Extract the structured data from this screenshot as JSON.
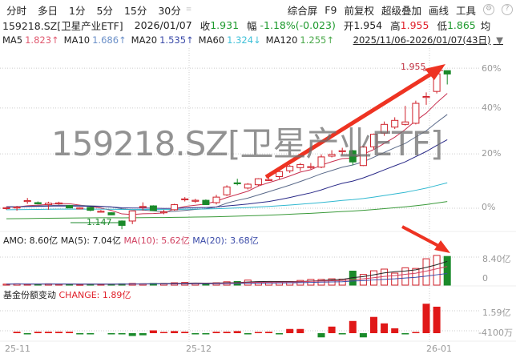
{
  "toolbar": {
    "tabs": [
      "分时",
      "多日",
      "1分",
      "5分",
      "15分",
      "30分"
    ],
    "right": [
      "综合屏",
      "F9",
      "前复权",
      "超级叠加",
      "画线",
      "工具"
    ]
  },
  "quote": {
    "name": "159218.SZ[卫星产业ETF]",
    "date": "2026/01/07",
    "close_label": "收",
    "close": "1.931",
    "chg_label": "幅",
    "chg": "-1.18%(-0.023)",
    "open_label": "开",
    "open": "1.954",
    "high_label": "高",
    "high": "1.955",
    "low_label": "低",
    "low": "1.865",
    "avg_label": "均"
  },
  "ma": [
    {
      "label": "MA5",
      "value": "1.823↑",
      "color": "#e05a70"
    },
    {
      "label": "MA10",
      "value": "1.686↑",
      "color": "#6a8fc8"
    },
    {
      "label": "MA20",
      "value": "1.535↑",
      "color": "#3a4aa8"
    },
    {
      "label": "MA60",
      "value": "1.324↓",
      "color": "#3fc0d8"
    },
    {
      "label": "MA120",
      "value": "1.255↑",
      "color": "#4aa84a"
    }
  ],
  "range": "2025/11/06-2026/01/07(43日)",
  "watermark": "159218.SZ[卫星产业ETF]",
  "colors": {
    "up": "#d0202a",
    "down": "#1a8a2a",
    "arrow": "#ee3322"
  },
  "chart_data": {
    "type": "candlestick",
    "scale": "log",
    "y_axis_ticks": [
      "60%",
      "40%",
      "20%",
      "0%"
    ],
    "x_ticks": [
      "25-11",
      "25-12",
      "26-01"
    ],
    "max_label": "1.955",
    "min_label": "1.147",
    "ohlc_pct": [
      [
        0,
        0.5,
        -0.5,
        0.2
      ],
      [
        0.3,
        0.8,
        -0.8,
        0.4
      ],
      [
        2.5,
        3.5,
        1.5,
        2.6
      ],
      [
        1.9,
        2.3,
        1.3,
        1.5
      ],
      [
        1.2,
        2.2,
        -0.5,
        1.7
      ],
      [
        1.6,
        2.2,
        1.2,
        1.8
      ],
      [
        0.9,
        1.1,
        0,
        0.1
      ],
      [
        0,
        0.3,
        -0.3,
        0.1
      ],
      [
        0.3,
        0.5,
        -1,
        -0.7
      ],
      [
        -1,
        -0.6,
        -1.4,
        -1
      ],
      [
        -1.5,
        -1.3,
        -2.3,
        -2.2
      ],
      [
        -4.2,
        -4,
        -6.8,
        -5.6
      ],
      [
        -4.2,
        -0.8,
        -5.2,
        -0.9
      ],
      [
        0.6,
        2,
        -0.8,
        0.6
      ],
      [
        0.8,
        1,
        -0.9,
        -0.8
      ],
      [
        -1.2,
        -0.5,
        -2,
        -1.2
      ],
      [
        -0.5,
        1.5,
        -0.8,
        1.2
      ],
      [
        3.1,
        3.8,
        2.3,
        3.2
      ],
      [
        2.6,
        3.2,
        1.8,
        2.7
      ],
      [
        2.7,
        3,
        1.1,
        1.2
      ],
      [
        1.9,
        4.6,
        1.3,
        3.8
      ],
      [
        4.6,
        8,
        4.2,
        7.4
      ],
      [
        8.9,
        10.4,
        8,
        8.6
      ],
      [
        7,
        8.8,
        6.5,
        8.4
      ],
      [
        8.2,
        10.6,
        7.7,
        10.4
      ],
      [
        10.1,
        11.3,
        9.6,
        10.1
      ],
      [
        11.2,
        13.6,
        10.3,
        13.1
      ],
      [
        13.4,
        15.6,
        12.6,
        15.1
      ],
      [
        14.6,
        16.4,
        13.3,
        15.8
      ],
      [
        15,
        16.4,
        14,
        15
      ],
      [
        14.8,
        19.8,
        14.4,
        18.8
      ],
      [
        19.1,
        21.5,
        18.6,
        19.8
      ],
      [
        21,
        22.5,
        19.5,
        21.3
      ],
      [
        21.3,
        21.6,
        15.5,
        16.8
      ],
      [
        15.4,
        23.3,
        15.2,
        22.8
      ],
      [
        22.9,
        28.5,
        22,
        28.2
      ],
      [
        28.7,
        33.8,
        27.5,
        32.5
      ],
      [
        31.3,
        35.7,
        30.5,
        34.3
      ],
      [
        32.5,
        41,
        32,
        33.6
      ],
      [
        33,
        43.5,
        32.5,
        42.2
      ],
      [
        45.5,
        47.5,
        41.5,
        45.5
      ],
      [
        48,
        58.8,
        47,
        57
      ],
      [
        58.7,
        58.8,
        51.5,
        56.9
      ]
    ],
    "amo": {
      "legend": [
        {
          "text": "AMO: 8.60亿",
          "color": "#222"
        },
        {
          "text": "MA(5): 7.04亿",
          "color": "#222"
        },
        {
          "text": "MA(10): 5.62亿",
          "color": "#d04060"
        },
        {
          "text": "MA(20): 3.68亿",
          "color": "#3a4aa8"
        }
      ],
      "ticks": [
        "8.40亿",
        "0"
      ],
      "values": [
        0.3,
        0.4,
        0.3,
        0.3,
        0.4,
        0.3,
        0.3,
        0.2,
        0.3,
        0.3,
        0.3,
        0.4,
        0.5,
        0.4,
        0.5,
        0.5,
        0.7,
        0.8,
        0.6,
        0.4,
        0.7,
        1.0,
        1.1,
        1.5,
        1.0,
        0.9,
        0.9,
        1.1,
        1.4,
        1.7,
        1.7,
        1.9,
        1.8,
        4.2,
        3.2,
        4.3,
        4.8,
        3.6,
        5.2,
        5.0,
        7.9,
        8.9,
        8.6
      ]
    },
    "change": {
      "legend_label": "基金份额变动",
      "legend_value": "CHANGE: 1.89亿",
      "ticks": [
        "1.59亿",
        "-4100万"
      ],
      "values": [
        0,
        0.1,
        -0.05,
        0.1,
        0.1,
        0.1,
        0.1,
        -0.03,
        -0.03,
        0,
        -0.03,
        -0.03,
        -0.2,
        -0.15,
        0.2,
        0.05,
        0.15,
        0.1,
        -0.03,
        -0.03,
        0.1,
        0.1,
        0.15,
        -0.03,
        0.05,
        0.1,
        -0.05,
        0.3,
        0.3,
        0,
        -0.3,
        0.47,
        -0.05,
        0.87,
        -0.3,
        1.16,
        0.7,
        0.35,
        -0.03,
        0.05,
        2.1,
        1.89,
        0
      ]
    }
  }
}
